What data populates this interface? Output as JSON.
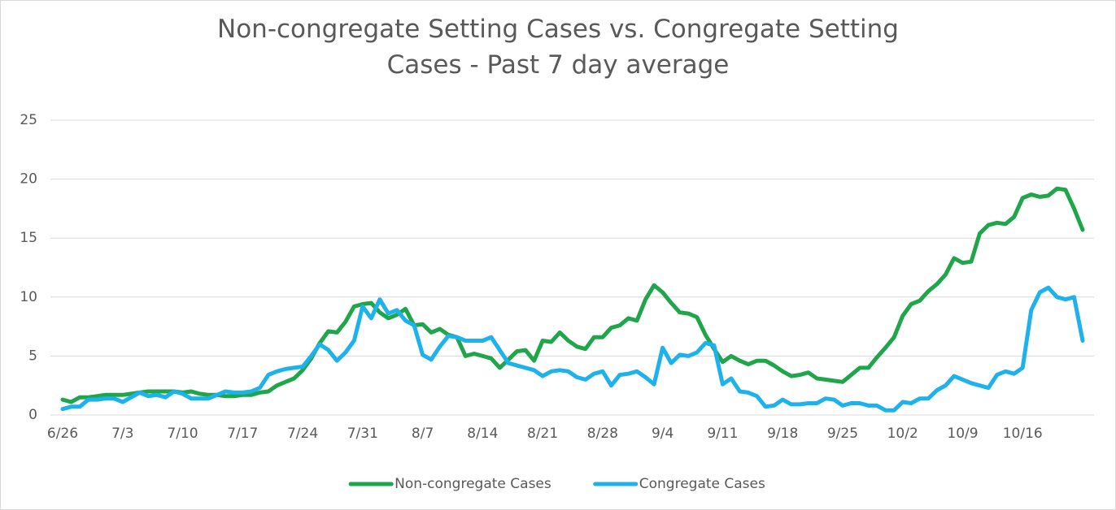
{
  "chart_data": {
    "type": "line",
    "title": "Non-congregate Setting Cases vs. Congregate Setting Cases - Past 7 day average",
    "categories": [
      "6/26",
      null,
      null,
      null,
      null,
      null,
      null,
      "7/3",
      null,
      null,
      null,
      null,
      null,
      null,
      "7/10",
      null,
      null,
      null,
      null,
      null,
      null,
      "7/17",
      null,
      null,
      null,
      null,
      null,
      null,
      "7/24",
      null,
      null,
      null,
      null,
      null,
      null,
      "7/31",
      null,
      null,
      null,
      null,
      null,
      null,
      "8/7",
      null,
      null,
      null,
      null,
      null,
      null,
      "8/14",
      null,
      null,
      null,
      null,
      null,
      null,
      "8/21",
      null,
      null,
      null,
      null,
      null,
      null,
      "8/28",
      null,
      null,
      null,
      null,
      null,
      null,
      "9/4",
      null,
      null,
      null,
      null,
      null,
      null,
      "9/11",
      null,
      null,
      null,
      null,
      null,
      null,
      "9/18",
      null,
      null,
      null,
      null,
      null,
      null,
      "9/25",
      null,
      null,
      null,
      null,
      null,
      null,
      "10/2",
      null,
      null,
      null,
      null,
      null,
      null,
      "10/9",
      null,
      null,
      null,
      null,
      null,
      null,
      "10/16",
      null,
      null,
      null,
      null,
      null,
      null,
      null
    ],
    "series": [
      {
        "name": "Non-congregate Cases",
        "color": "#1fa64a",
        "values": [
          1.3,
          1.1,
          1.5,
          1.5,
          1.6,
          1.7,
          1.7,
          1.7,
          1.8,
          1.9,
          2.0,
          2.0,
          2.0,
          2.0,
          1.9,
          2.0,
          1.8,
          1.7,
          1.7,
          1.6,
          1.6,
          1.7,
          1.7,
          1.9,
          2.0,
          2.5,
          2.8,
          3.1,
          3.8,
          4.8,
          6.1,
          7.1,
          7.0,
          7.9,
          9.2,
          9.4,
          9.5,
          8.7,
          8.2,
          8.5,
          9.0,
          7.6,
          7.7,
          7.0,
          7.3,
          6.8,
          6.6,
          5.0,
          5.2,
          5.0,
          4.8,
          4.0,
          4.7,
          5.4,
          5.5,
          4.6,
          6.3,
          6.2,
          7.0,
          6.3,
          5.8,
          5.6,
          6.6,
          6.6,
          7.4,
          7.6,
          8.2,
          8.0,
          9.8,
          11.0,
          10.4,
          9.5,
          8.7,
          8.6,
          8.3,
          6.8,
          5.6,
          4.5,
          5.0,
          4.6,
          4.3,
          4.6,
          4.6,
          4.2,
          3.7,
          3.3,
          3.4,
          3.6,
          3.1,
          3.0,
          2.9,
          2.8,
          3.4,
          4.0,
          4.0,
          4.9,
          5.7,
          6.6,
          8.4,
          9.4,
          9.7,
          10.5,
          11.1,
          11.9,
          13.3,
          12.9,
          13.0,
          15.4,
          16.1,
          16.3,
          16.2,
          16.8,
          18.4,
          18.7,
          18.5,
          18.6,
          19.2,
          19.1,
          17.5,
          15.7
        ]
      },
      {
        "name": "Congregate Cases",
        "color": "#1eb2ec",
        "values": [
          0.5,
          0.7,
          0.7,
          1.3,
          1.3,
          1.4,
          1.4,
          1.1,
          1.5,
          1.9,
          1.6,
          1.7,
          1.5,
          2.0,
          1.8,
          1.4,
          1.4,
          1.4,
          1.7,
          2.0,
          1.9,
          1.9,
          2.0,
          2.3,
          3.4,
          3.7,
          3.9,
          4.0,
          4.1,
          5.0,
          6.0,
          5.5,
          4.6,
          5.3,
          6.3,
          9.2,
          8.2,
          9.8,
          8.6,
          8.9,
          8.0,
          7.6,
          5.1,
          4.7,
          5.8,
          6.7,
          6.6,
          6.3,
          6.3,
          6.3,
          6.6,
          5.5,
          4.4,
          4.2,
          4.0,
          3.8,
          3.3,
          3.7,
          3.8,
          3.7,
          3.2,
          3.0,
          3.5,
          3.7,
          2.5,
          3.4,
          3.5,
          3.7,
          3.2,
          2.6,
          5.7,
          4.4,
          5.1,
          5.0,
          5.3,
          6.1,
          5.9,
          2.6,
          3.1,
          2.0,
          1.9,
          1.6,
          0.7,
          0.8,
          1.3,
          0.9,
          0.9,
          1.0,
          1.0,
          1.4,
          1.3,
          0.8,
          1.0,
          1.0,
          0.8,
          0.8,
          0.4,
          0.4,
          1.1,
          1.0,
          1.4,
          1.4,
          2.1,
          2.5,
          3.3,
          3.0,
          2.7,
          2.5,
          2.3,
          3.4,
          3.7,
          3.5,
          4.0,
          8.9,
          10.4,
          10.8,
          10.0,
          9.8,
          10.0,
          6.3
        ]
      }
    ],
    "ylim": [
      0,
      25
    ],
    "yticks": [
      0,
      5,
      10,
      15,
      20,
      25
    ],
    "grid": true,
    "legend": "bottom"
  }
}
